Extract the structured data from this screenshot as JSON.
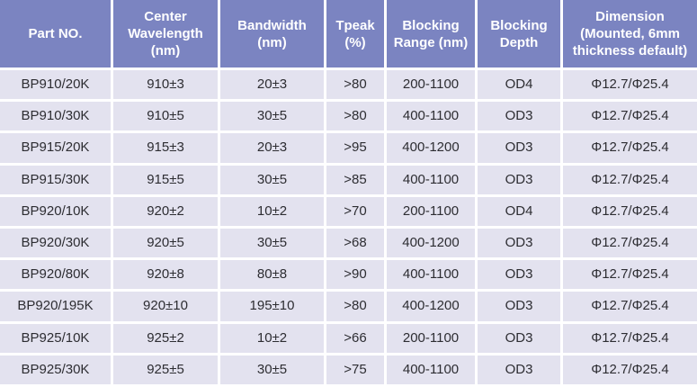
{
  "colors": {
    "header_bg": "#7b84c1",
    "header_text": "#ffffff",
    "row_bg": "#e3e2ef",
    "body_text": "#2d2d32",
    "grid": "#ffffff"
  },
  "table": {
    "columns": [
      {
        "label": "Part NO."
      },
      {
        "label": "Center Wavelength (nm)"
      },
      {
        "label": "Bandwidth (nm)"
      },
      {
        "label": "Tpeak (%)"
      },
      {
        "label": "Blocking Range (nm)"
      },
      {
        "label": "Blocking Depth"
      },
      {
        "label": "Dimension (Mounted, 6mm thickness default)"
      }
    ],
    "rows": [
      [
        "BP910/20K",
        "910±3",
        "20±3",
        ">80",
        "200-1100",
        "OD4",
        "Φ12.7/Φ25.4"
      ],
      [
        "BP910/30K",
        "910±5",
        "30±5",
        ">80",
        "400-1100",
        "OD3",
        "Φ12.7/Φ25.4"
      ],
      [
        "BP915/20K",
        "915±3",
        "20±3",
        ">95",
        "400-1200",
        "OD3",
        "Φ12.7/Φ25.4"
      ],
      [
        "BP915/30K",
        "915±5",
        "30±5",
        ">85",
        "400-1100",
        "OD3",
        "Φ12.7/Φ25.4"
      ],
      [
        "BP920/10K",
        "920±2",
        "10±2",
        ">70",
        "200-1100",
        "OD4",
        "Φ12.7/Φ25.4"
      ],
      [
        "BP920/30K",
        "920±5",
        "30±5",
        ">68",
        "400-1200",
        "OD3",
        "Φ12.7/Φ25.4"
      ],
      [
        "BP920/80K",
        "920±8",
        "80±8",
        ">90",
        "400-1100",
        "OD3",
        "Φ12.7/Φ25.4"
      ],
      [
        "BP920/195K",
        "920±10",
        "195±10",
        ">80",
        "400-1200",
        "OD3",
        "Φ12.7/Φ25.4"
      ],
      [
        "BP925/10K",
        "925±2",
        "10±2",
        ">66",
        "200-1100",
        "OD3",
        "Φ12.7/Φ25.4"
      ],
      [
        "BP925/30K",
        "925±5",
        "30±5",
        ">75",
        "400-1100",
        "OD3",
        "Φ12.7/Φ25.4"
      ]
    ]
  }
}
